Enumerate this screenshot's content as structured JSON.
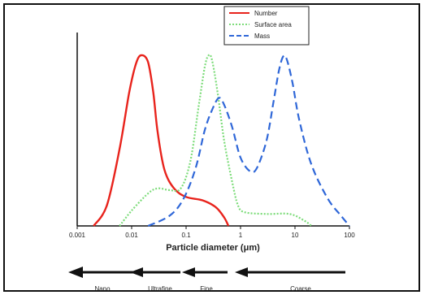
{
  "colors": {
    "number": "#e8231c",
    "surface_area": "#7ddc7a",
    "mass": "#2f67d8",
    "axis": "#111111",
    "arrow": "#111111"
  },
  "chart_data": {
    "type": "line",
    "xlabel": "Particle diameter (μm)",
    "x_scale": "log",
    "xlim": [
      0.001,
      100
    ],
    "x_ticks": [
      "0.001",
      "0.01",
      "0.1",
      "1",
      "10",
      "100"
    ],
    "y_ticks": [],
    "grid": false,
    "legend_position": "top-right",
    "series": [
      {
        "name": "Number",
        "style": "solid",
        "color": "#e8231c",
        "points": [
          [
            0.002,
            0
          ],
          [
            0.0035,
            0.12
          ],
          [
            0.006,
            0.45
          ],
          [
            0.009,
            0.78
          ],
          [
            0.012,
            0.95
          ],
          [
            0.015,
            1.0
          ],
          [
            0.02,
            0.96
          ],
          [
            0.025,
            0.78
          ],
          [
            0.03,
            0.55
          ],
          [
            0.04,
            0.33
          ],
          [
            0.06,
            0.22
          ],
          [
            0.1,
            0.17
          ],
          [
            0.2,
            0.15
          ],
          [
            0.35,
            0.11
          ],
          [
            0.5,
            0.05
          ],
          [
            0.6,
            0
          ]
        ]
      },
      {
        "name": "Surface area",
        "style": "dotted",
        "color": "#7ddc7a",
        "points": [
          [
            0.006,
            0
          ],
          [
            0.01,
            0.09
          ],
          [
            0.02,
            0.19
          ],
          [
            0.03,
            0.22
          ],
          [
            0.05,
            0.21
          ],
          [
            0.08,
            0.22
          ],
          [
            0.12,
            0.38
          ],
          [
            0.17,
            0.7
          ],
          [
            0.22,
            0.93
          ],
          [
            0.26,
            1.0
          ],
          [
            0.3,
            0.97
          ],
          [
            0.38,
            0.78
          ],
          [
            0.5,
            0.5
          ],
          [
            0.7,
            0.26
          ],
          [
            0.9,
            0.12
          ],
          [
            1.2,
            0.08
          ],
          [
            3,
            0.07
          ],
          [
            8,
            0.07
          ],
          [
            15,
            0.03
          ],
          [
            20,
            0
          ]
        ]
      },
      {
        "name": "Mass",
        "style": "dashed",
        "color": "#2f67d8",
        "points": [
          [
            0.02,
            0
          ],
          [
            0.05,
            0.06
          ],
          [
            0.09,
            0.16
          ],
          [
            0.15,
            0.34
          ],
          [
            0.22,
            0.56
          ],
          [
            0.3,
            0.68
          ],
          [
            0.4,
            0.75
          ],
          [
            0.5,
            0.71
          ],
          [
            0.7,
            0.58
          ],
          [
            1,
            0.4
          ],
          [
            1.5,
            0.32
          ],
          [
            2,
            0.34
          ],
          [
            3,
            0.5
          ],
          [
            4,
            0.72
          ],
          [
            5,
            0.9
          ],
          [
            6,
            0.99
          ],
          [
            7,
            0.98
          ],
          [
            9,
            0.84
          ],
          [
            12,
            0.62
          ],
          [
            20,
            0.36
          ],
          [
            40,
            0.16
          ],
          [
            70,
            0.06
          ],
          [
            100,
            0
          ]
        ]
      }
    ]
  },
  "legend": {
    "number": "Number",
    "surface_area": "Surface area",
    "mass": "Mass"
  },
  "size_classes": {
    "nano": "Nano",
    "ultrafine": "Ultrafine",
    "fine": "Fine",
    "coarse": "Coarse"
  }
}
